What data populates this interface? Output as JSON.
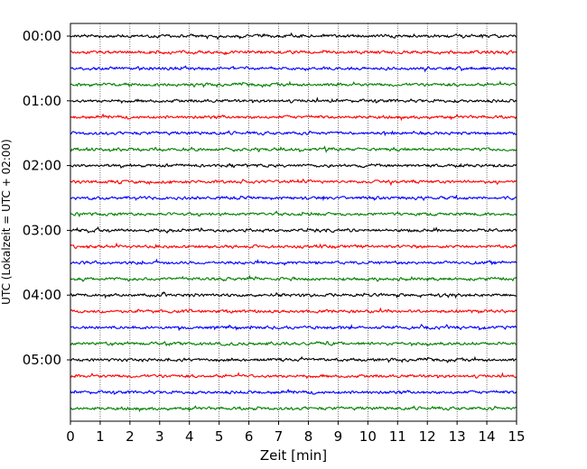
{
  "chart_data": {
    "type": "line",
    "title": "",
    "xlabel": "Zeit  [min]",
    "ylabel": "UTC (Lokalzeit = UTC + 02:00)",
    "xlim": [
      0,
      15
    ],
    "x_ticks": [
      "0",
      "1",
      "2",
      "3",
      "4",
      "5",
      "6",
      "7",
      "8",
      "9",
      "10",
      "11",
      "12",
      "13",
      "14",
      "15"
    ],
    "y_tick_labels": [
      "00:00",
      "01:00",
      "02:00",
      "03:00",
      "04:00",
      "05:00"
    ],
    "x_grid": "dotted vertical lines at each minute",
    "legend": "none",
    "trace_interval_minutes": 15,
    "trace_colors": [
      "#000000",
      "#ff0000",
      "#0000ff",
      "#008000"
    ],
    "series": [
      {
        "start": "00:00",
        "color": "#000000"
      },
      {
        "start": "00:15",
        "color": "#ff0000"
      },
      {
        "start": "00:30",
        "color": "#0000ff"
      },
      {
        "start": "00:45",
        "color": "#008000"
      },
      {
        "start": "01:00",
        "color": "#000000"
      },
      {
        "start": "01:15",
        "color": "#ff0000"
      },
      {
        "start": "01:30",
        "color": "#0000ff"
      },
      {
        "start": "01:45",
        "color": "#008000"
      },
      {
        "start": "02:00",
        "color": "#000000"
      },
      {
        "start": "02:15",
        "color": "#ff0000"
      },
      {
        "start": "02:30",
        "color": "#0000ff"
      },
      {
        "start": "02:45",
        "color": "#008000"
      },
      {
        "start": "03:00",
        "color": "#000000"
      },
      {
        "start": "03:15",
        "color": "#ff0000"
      },
      {
        "start": "03:30",
        "color": "#0000ff"
      },
      {
        "start": "03:45",
        "color": "#008000"
      },
      {
        "start": "04:00",
        "color": "#000000"
      },
      {
        "start": "04:15",
        "color": "#ff0000"
      },
      {
        "start": "04:30",
        "color": "#0000ff"
      },
      {
        "start": "04:45",
        "color": "#008000"
      },
      {
        "start": "05:00",
        "color": "#000000"
      },
      {
        "start": "05:15",
        "color": "#ff0000"
      },
      {
        "start": "05:30",
        "color": "#0000ff"
      },
      {
        "start": "05:45",
        "color": "#008000"
      }
    ]
  }
}
